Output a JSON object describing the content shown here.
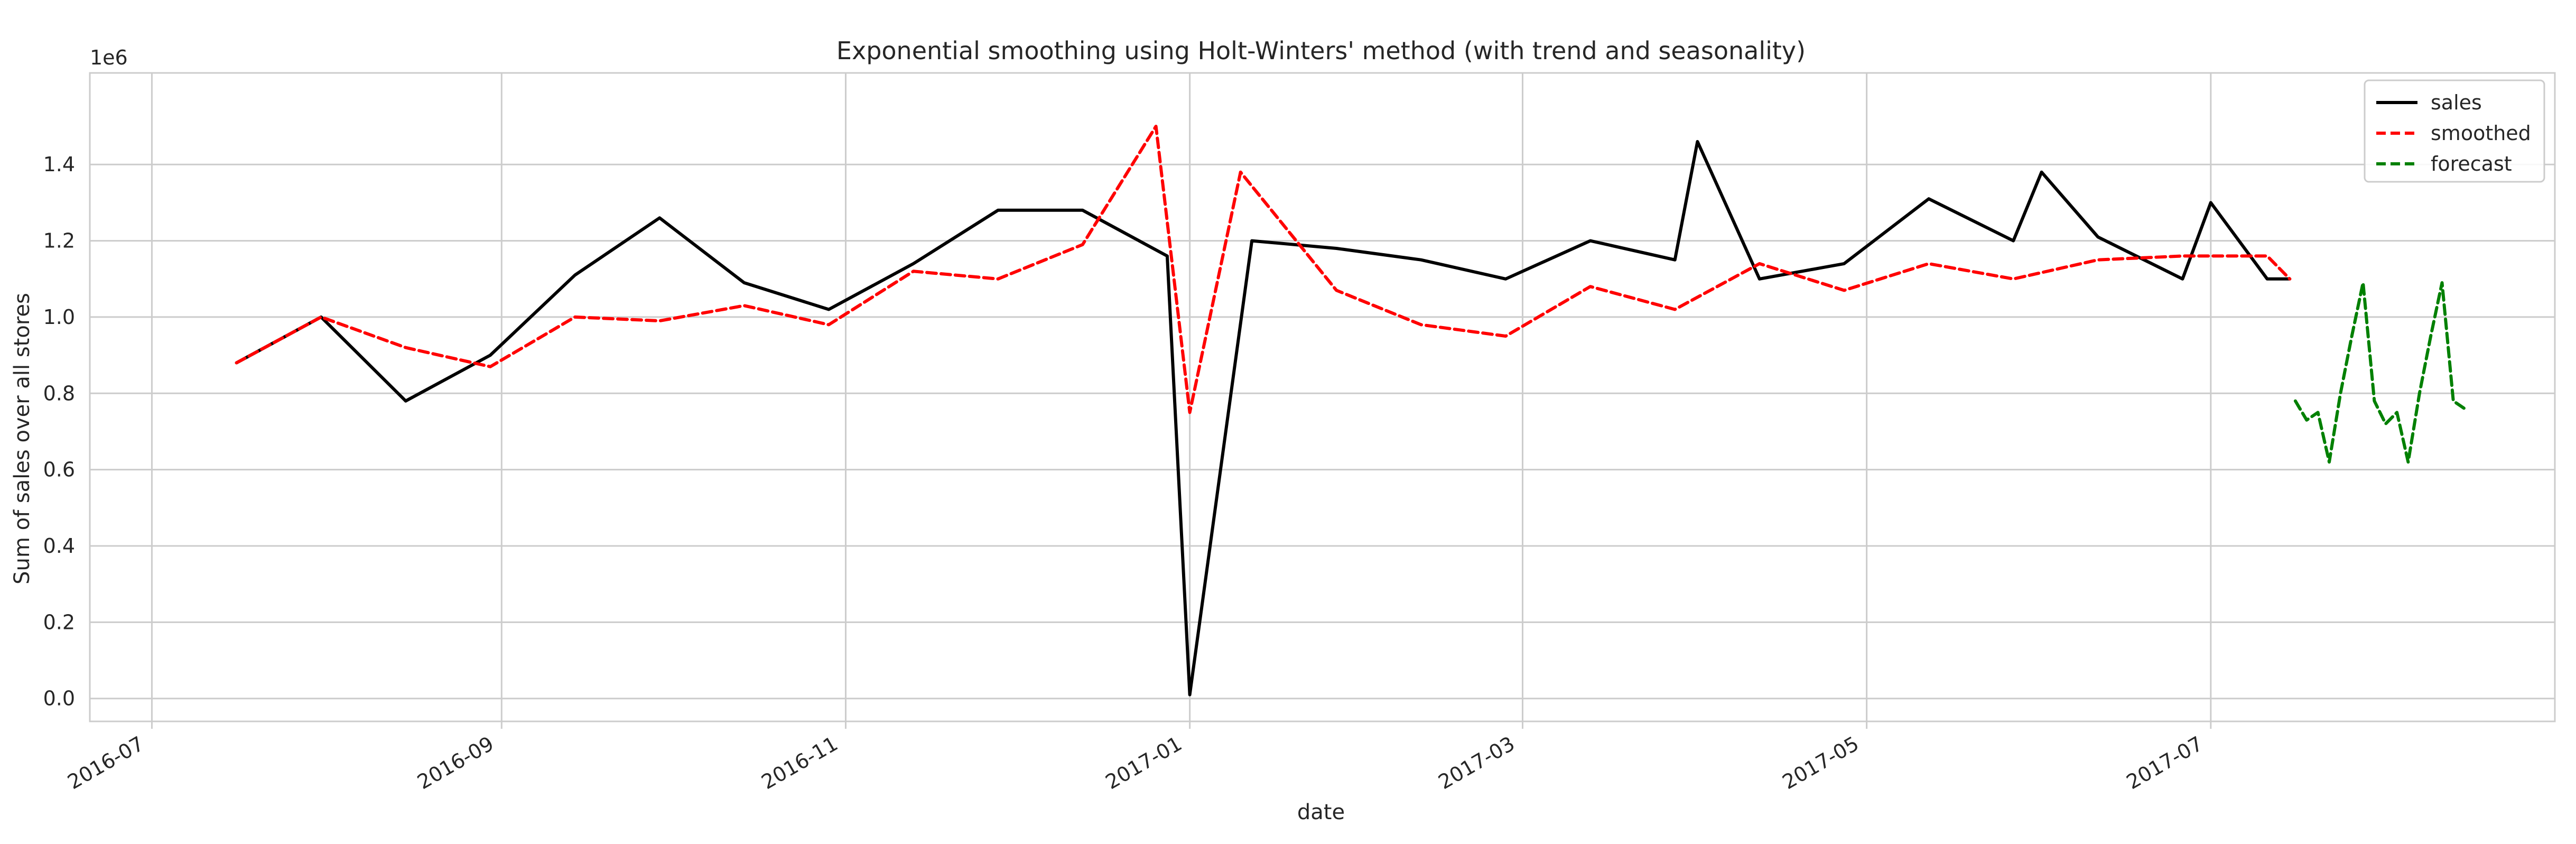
{
  "chart_data": {
    "type": "line",
    "title": "Exponential smoothing using Holt-Winters' method (with trend and seasonality)",
    "xlabel": "date",
    "ylabel": "Sum of sales over all stores",
    "y_offset_label": "1e6",
    "x_range": [
      "2016-06-20",
      "2017-08-31"
    ],
    "ylim": [
      -0.06,
      1.64
    ],
    "y_scale_note": "values in units of 1e6",
    "grid": true,
    "legend_position": "top-right",
    "x_tick_labels": [
      "2016-07",
      "2016-09",
      "2016-11",
      "2017-01",
      "2017-03",
      "2017-05",
      "2017-07"
    ],
    "x_tick_dates": [
      "2016-07-01",
      "2016-09-01",
      "2016-11-01",
      "2017-01-01",
      "2017-03-01",
      "2017-05-01",
      "2017-07-01"
    ],
    "y_ticks": [
      "0.0",
      "0.2",
      "0.4",
      "0.6",
      "0.8",
      "1.0",
      "1.2",
      "1.4"
    ],
    "y_tick_values": [
      0.0,
      0.2,
      0.4,
      0.6,
      0.8,
      1.0,
      1.2,
      1.4
    ],
    "series": [
      {
        "name": "sales",
        "color": "#000000",
        "style": "solid",
        "x": [
          "2016-07-16",
          "2016-07-31",
          "2016-08-15",
          "2016-08-30",
          "2016-09-14",
          "2016-09-29",
          "2016-10-14",
          "2016-10-29",
          "2016-11-13",
          "2016-11-28",
          "2016-12-13",
          "2016-12-28",
          "2017-01-01",
          "2017-01-12",
          "2017-01-27",
          "2017-02-11",
          "2017-02-26",
          "2017-03-13",
          "2017-03-28",
          "2017-04-01",
          "2017-04-12",
          "2017-04-27",
          "2017-05-12",
          "2017-05-27",
          "2017-06-01",
          "2017-06-11",
          "2017-06-26",
          "2017-07-01",
          "2017-07-11",
          "2017-07-15"
        ],
        "values": [
          0.88,
          1.0,
          0.78,
          0.9,
          1.11,
          1.26,
          1.09,
          1.02,
          1.14,
          1.28,
          1.28,
          1.16,
          0.01,
          1.2,
          1.18,
          1.15,
          1.1,
          1.2,
          1.15,
          1.46,
          1.1,
          1.14,
          1.31,
          1.2,
          1.38,
          1.21,
          1.1,
          1.3,
          1.1,
          1.1
        ]
      },
      {
        "name": "smoothed",
        "color": "#ff0000",
        "style": "dashed",
        "x": [
          "2016-07-16",
          "2016-07-31",
          "2016-08-15",
          "2016-08-30",
          "2016-09-14",
          "2016-09-29",
          "2016-10-14",
          "2016-10-29",
          "2016-11-13",
          "2016-11-28",
          "2016-12-13",
          "2016-12-26",
          "2017-01-01",
          "2017-01-10",
          "2017-01-27",
          "2017-02-11",
          "2017-02-26",
          "2017-03-13",
          "2017-03-28",
          "2017-04-12",
          "2017-04-27",
          "2017-05-12",
          "2017-05-27",
          "2017-06-11",
          "2017-06-26",
          "2017-07-11",
          "2017-07-15"
        ],
        "values": [
          0.88,
          1.0,
          0.92,
          0.87,
          1.0,
          0.99,
          1.03,
          0.98,
          1.12,
          1.1,
          1.19,
          1.5,
          0.75,
          1.38,
          1.07,
          0.98,
          0.95,
          1.08,
          1.02,
          1.14,
          1.07,
          1.14,
          1.1,
          1.15,
          1.16,
          1.16,
          1.1
        ]
      },
      {
        "name": "forecast",
        "color": "#008000",
        "style": "dashed",
        "x": [
          "2017-07-16",
          "2017-07-18",
          "2017-07-20",
          "2017-07-22",
          "2017-07-24",
          "2017-07-26",
          "2017-07-28",
          "2017-07-30",
          "2017-08-01",
          "2017-08-03",
          "2017-08-05",
          "2017-08-07",
          "2017-08-09",
          "2017-08-11",
          "2017-08-13",
          "2017-08-15"
        ],
        "values": [
          0.78,
          0.73,
          0.75,
          0.62,
          0.8,
          0.95,
          1.09,
          0.78,
          0.72,
          0.75,
          0.62,
          0.8,
          0.95,
          1.09,
          0.78,
          0.76
        ]
      }
    ]
  }
}
